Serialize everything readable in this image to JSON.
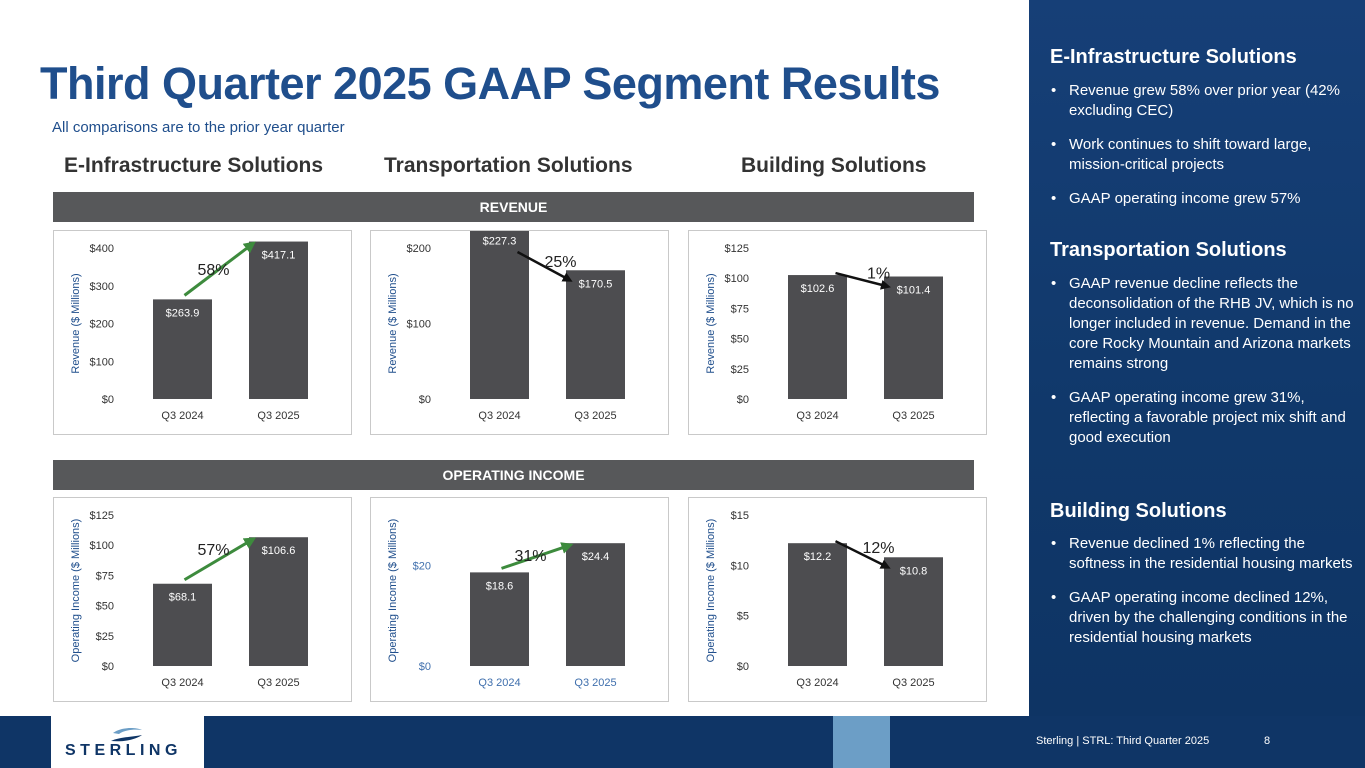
{
  "title": "Third Quarter 2025 GAAP Segment Results",
  "subtitle": "All comparisons are to the prior year quarter",
  "segments": [
    "E-Infrastructure Solutions",
    "Transportation Solutions",
    "Building Solutions"
  ],
  "bands": {
    "revenue": "REVENUE",
    "operating_income": "OPERATING INCOME"
  },
  "colors": {
    "bar": "#4d4d50",
    "up_arrow": "#3d8b3d",
    "down_arrow": "#111111",
    "navy": "#1f4e8c"
  },
  "chart_data": [
    {
      "id": "rev-ei",
      "type": "bar",
      "segment": "E-Infrastructure Solutions",
      "metric": "Revenue",
      "ylabel": "Revenue ($ Millions)",
      "categories": [
        "Q3 2024",
        "Q3 2025"
      ],
      "values": [
        263.9,
        417.1
      ],
      "value_labels": [
        "$263.9",
        "$417.1"
      ],
      "ylim": [
        0,
        400
      ],
      "yticks": [
        "$0",
        "$100",
        "$200",
        "$300",
        "$400"
      ],
      "change": "58%",
      "direction": "up",
      "tick_style": "dark"
    },
    {
      "id": "rev-ts",
      "type": "bar",
      "segment": "Transportation Solutions",
      "metric": "Revenue",
      "ylabel": "Revenue ($ Millions)",
      "categories": [
        "Q3 2024",
        "Q3 2025"
      ],
      "values": [
        227.3,
        170.5
      ],
      "value_labels": [
        "$227.3",
        "$170.5"
      ],
      "ylim": [
        0,
        200
      ],
      "yticks": [
        "$0",
        "$100",
        "$200"
      ],
      "change": "25%",
      "direction": "down",
      "tick_style": "dark"
    },
    {
      "id": "rev-bs",
      "type": "bar",
      "segment": "Building Solutions",
      "metric": "Revenue",
      "ylabel": "Revenue ($ Millions)",
      "categories": [
        "Q3 2024",
        "Q3 2025"
      ],
      "values": [
        102.6,
        101.4
      ],
      "value_labels": [
        "$102.6",
        "$101.4"
      ],
      "ylim": [
        0,
        125
      ],
      "yticks": [
        "$0",
        "$25",
        "$50",
        "$75",
        "$100",
        "$125"
      ],
      "change": "1%",
      "direction": "down",
      "tick_style": "dark"
    },
    {
      "id": "oi-ei",
      "type": "bar",
      "segment": "E-Infrastructure Solutions",
      "metric": "Operating Income",
      "ylabel": "Operating Income ($ Millions)",
      "categories": [
        "Q3 2024",
        "Q3 2025"
      ],
      "values": [
        68.1,
        106.6
      ],
      "value_labels": [
        "$68.1",
        "$106.6"
      ],
      "ylim": [
        0,
        125
      ],
      "yticks": [
        "$0",
        "$25",
        "$50",
        "$75",
        "$100",
        "$125"
      ],
      "change": "57%",
      "direction": "up",
      "tick_style": "dark"
    },
    {
      "id": "oi-ts",
      "type": "bar",
      "segment": "Transportation Solutions",
      "metric": "Operating Income",
      "ylabel": "Operating Income ($ Millions)",
      "categories": [
        "Q3 2024",
        "Q3 2025"
      ],
      "values": [
        18.6,
        24.4
      ],
      "value_labels": [
        "$18.6",
        "$24.4"
      ],
      "ylim": [
        0,
        30
      ],
      "yticks": [
        "$0",
        "$20"
      ],
      "change": "31%",
      "direction": "up",
      "tick_style": "blue"
    },
    {
      "id": "oi-bs",
      "type": "bar",
      "segment": "Building Solutions",
      "metric": "Operating Income",
      "ylabel": "Operating Income ($ Millions)",
      "categories": [
        "Q3 2024",
        "Q3 2025"
      ],
      "values": [
        12.2,
        10.8
      ],
      "value_labels": [
        "$12.2",
        "$10.8"
      ],
      "ylim": [
        0,
        15
      ],
      "yticks": [
        "$0",
        "$5",
        "$10",
        "$15"
      ],
      "change": "12%",
      "direction": "down",
      "tick_style": "dark"
    }
  ],
  "sidebar": {
    "sections": [
      {
        "heading": "E-Infrastructure Solutions",
        "bullets": [
          "Revenue grew 58% over prior year (42% excluding CEC)",
          "Work continues to shift toward large, mission-critical projects",
          "GAAP operating income grew 57%"
        ]
      },
      {
        "heading": "Transportation Solutions",
        "bullets": [
          "GAAP revenue decline reflects the deconsolidation of the RHB JV, which is no longer included in revenue. Demand in the core Rocky Mountain and Arizona markets remains strong",
          "GAAP operating income grew 31%, reflecting a favorable project mix shift and good execution"
        ]
      },
      {
        "heading": "Building Solutions",
        "bullets": [
          "Revenue declined 1% reflecting the softness in the residential housing markets",
          "GAAP operating income declined 12%, driven by the challenging conditions in the residential housing markets"
        ]
      }
    ]
  },
  "footer": {
    "logo_text": "STERLING",
    "text": "Sterling | STRL:  Third Quarter 2025",
    "page": "8"
  }
}
